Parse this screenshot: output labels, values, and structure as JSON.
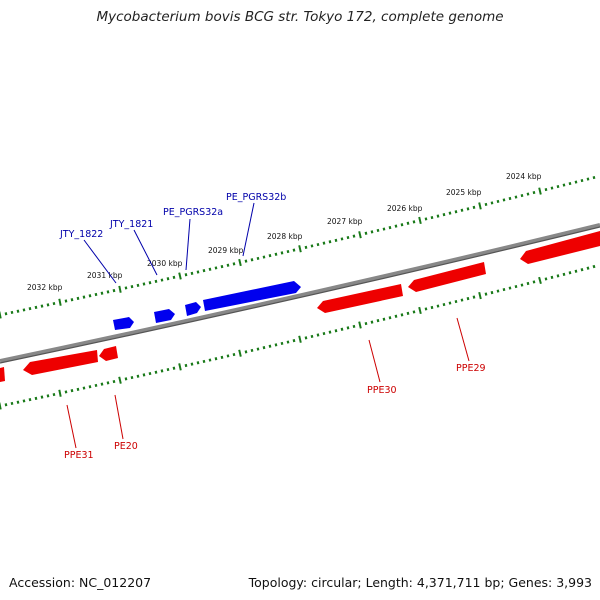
{
  "title": "Mycobacterium bovis BCG str. Tokyo 172, complete genome",
  "footer": {
    "accession": "Accession: NC_012207",
    "topology": "Topology: circular; Length: 4,371,711 bp; Genes: 3,993"
  },
  "colors": {
    "forward_strand": "#0000ee",
    "reverse_strand": "#ee0000",
    "backbone": "#7f7f7f",
    "ruler_ticks": "#1a7a1a",
    "forward_label": "#0000aa",
    "reverse_label": "#cc0000"
  },
  "kbp_labels": [
    "2032 kbp",
    "2031 kbp",
    "2030 kbp",
    "2029 kbp",
    "2028 kbp",
    "2027 kbp",
    "2026 kbp",
    "2025 kbp",
    "2024 kbp"
  ],
  "forward_genes": [
    "JTY_1822",
    "JTY_1821",
    "PE_PGRS32a",
    "PE_PGRS32b"
  ],
  "reverse_genes": [
    "PPE31",
    "PE20",
    "PPE30",
    "PPE29"
  ]
}
